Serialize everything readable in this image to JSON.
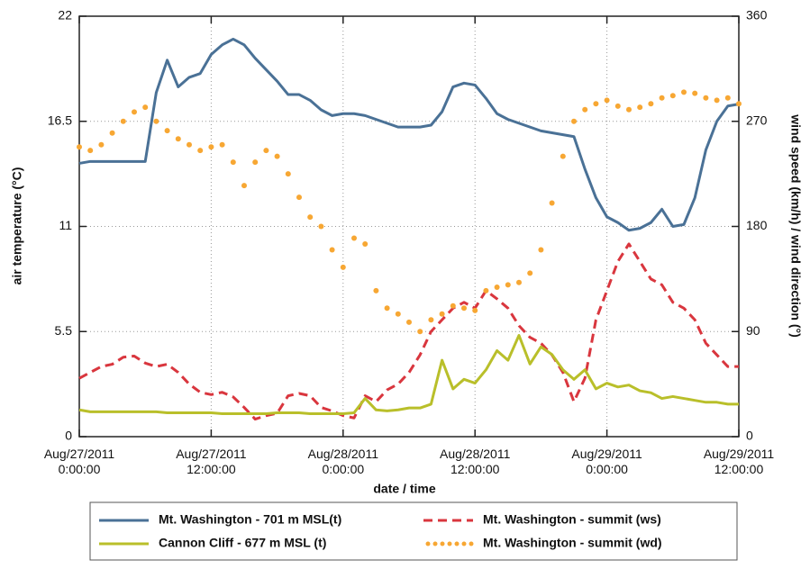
{
  "chart_data": {
    "type": "line",
    "xlabel": "date / time",
    "ylabel": "air temperature (°C)",
    "y2label": "wind speed (km/h) / wind direction (°)",
    "x": [
      0,
      1,
      2,
      3,
      4,
      5,
      6,
      7,
      8,
      9,
      10,
      11,
      12,
      13,
      14,
      15,
      16,
      17,
      18,
      19,
      20,
      21,
      22,
      23,
      24,
      25,
      26,
      27,
      28,
      29,
      30,
      31,
      32,
      33,
      34,
      35,
      36,
      37,
      38,
      39,
      40,
      41,
      42,
      43,
      44,
      45,
      46,
      47,
      48,
      49,
      50,
      51,
      52,
      53,
      54,
      55,
      56,
      57,
      58,
      59,
      60
    ],
    "xlim": [
      0,
      60
    ],
    "xticks": [
      {
        "value": 0,
        "label": "Aug/27/2011 0:00:00"
      },
      {
        "value": 12,
        "label": "Aug/27/2011 12:00:00"
      },
      {
        "value": 24,
        "label": "Aug/28/2011 0:00:00"
      },
      {
        "value": 36,
        "label": "Aug/28/2011 12:00:00"
      },
      {
        "value": 48,
        "label": "Aug/29/2011 0:00:00"
      },
      {
        "value": 60,
        "label": "Aug/29/2011 12:00:00"
      }
    ],
    "ylim": [
      0,
      22
    ],
    "yticks": [
      0,
      5.5,
      11,
      16.5,
      22
    ],
    "y2lim": [
      0,
      360
    ],
    "y2ticks": [
      0,
      90,
      180,
      270,
      360
    ],
    "grid": true,
    "series": [
      {
        "name": "Mt. Washington - 701 m MSL(t)",
        "color": "#4a7196",
        "style": "solid",
        "values": [
          14.3,
          14.4,
          14.4,
          14.4,
          14.4,
          14.4,
          14.4,
          18.0,
          19.7,
          18.3,
          18.8,
          19.0,
          20.0,
          20.5,
          20.8,
          20.5,
          19.8,
          19.2,
          18.6,
          17.9,
          17.9,
          17.6,
          17.1,
          16.8,
          16.9,
          16.9,
          16.8,
          16.6,
          16.4,
          16.2,
          16.2,
          16.2,
          16.3,
          17.0,
          18.3,
          18.5,
          18.4,
          17.7,
          16.9,
          16.6,
          16.4,
          16.2,
          16.0,
          15.9,
          15.8,
          15.7,
          14.0,
          12.5,
          11.5,
          11.2,
          10.8,
          10.9,
          11.2,
          11.9,
          11.0,
          11.1,
          12.5,
          15.0,
          16.5,
          17.3,
          17.4
        ]
      },
      {
        "name": "Mt. Washington - summit (ws)",
        "color": "#d9363e",
        "style": "dashed",
        "axis": "y2",
        "values": [
          50,
          55,
          60,
          62,
          68,
          69,
          63,
          60,
          62,
          55,
          45,
          38,
          36,
          38,
          34,
          25,
          15,
          18,
          20,
          35,
          37,
          35,
          25,
          22,
          18,
          16,
          35,
          30,
          40,
          45,
          55,
          70,
          90,
          100,
          110,
          115,
          110,
          125,
          118,
          110,
          95,
          85,
          80,
          70,
          55,
          30,
          50,
          100,
          125,
          150,
          165,
          150,
          135,
          130,
          115,
          110,
          100,
          80,
          70,
          60,
          60
        ]
      },
      {
        "name": "Cannon Cliff - 677 m MSL (t)",
        "color": "#b9bf2a",
        "style": "solid",
        "values": [
          1.4,
          1.3,
          1.3,
          1.3,
          1.3,
          1.3,
          1.3,
          1.3,
          1.25,
          1.25,
          1.25,
          1.25,
          1.25,
          1.2,
          1.2,
          1.2,
          1.2,
          1.2,
          1.25,
          1.25,
          1.25,
          1.2,
          1.2,
          1.2,
          1.2,
          1.25,
          2.0,
          1.4,
          1.35,
          1.4,
          1.5,
          1.5,
          1.7,
          4.0,
          2.5,
          3.0,
          2.8,
          3.5,
          4.5,
          4.0,
          5.3,
          3.8,
          4.7,
          4.3,
          3.5,
          3.0,
          3.5,
          2.5,
          2.8,
          2.6,
          2.7,
          2.4,
          2.3,
          2.0,
          2.1,
          2.0,
          1.9,
          1.8,
          1.8,
          1.7,
          1.7
        ]
      },
      {
        "name": "Mt. Washington - summit (wd)",
        "color": "#f7a733",
        "style": "dots",
        "axis": "y2",
        "values": [
          248,
          245,
          250,
          260,
          270,
          278,
          282,
          270,
          262,
          255,
          250,
          245,
          248,
          250,
          235,
          215,
          235,
          245,
          240,
          225,
          205,
          188,
          180,
          160,
          145,
          170,
          165,
          125,
          110,
          105,
          98,
          90,
          100,
          105,
          112,
          110,
          108,
          125,
          128,
          130,
          132,
          140,
          160,
          200,
          240,
          270,
          280,
          285,
          288,
          283,
          280,
          282,
          285,
          290,
          292,
          295,
          294,
          290,
          288,
          290,
          285
        ]
      }
    ]
  }
}
